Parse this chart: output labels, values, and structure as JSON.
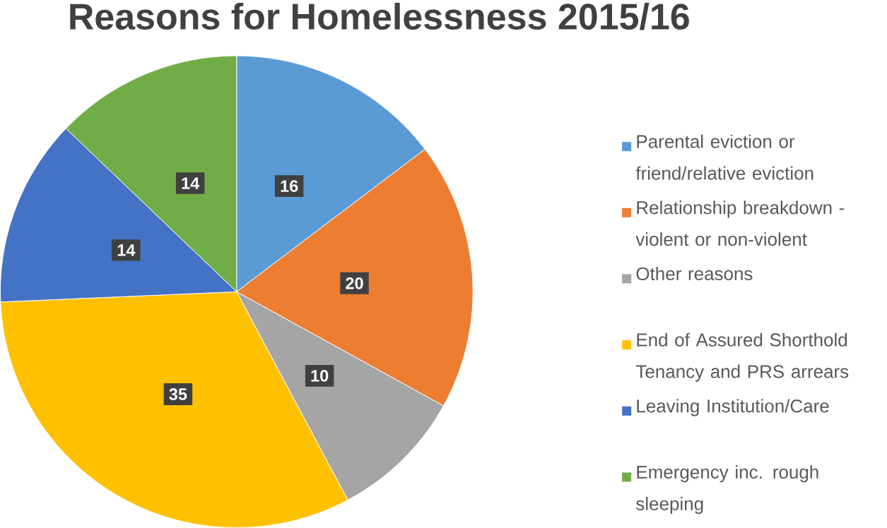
{
  "chart_data": {
    "type": "pie",
    "title": "Reasons for Homelessness 2015/16",
    "categories": [
      "Parental eviction or friend/relative eviction",
      "Relationship breakdown - violent or non-violent",
      "Other reasons",
      "End of Assured Shorthold Tenancy and PRS arrears",
      "Leaving Institution/Care",
      "Emergency inc. rough sleeping"
    ],
    "values": [
      16,
      20,
      10,
      35,
      14,
      14
    ],
    "colors": [
      "#5b9bd5",
      "#ed7d31",
      "#a5a5a5",
      "#ffc000",
      "#4472c4",
      "#70ad47"
    ],
    "data_labels": true,
    "legend": "right"
  }
}
